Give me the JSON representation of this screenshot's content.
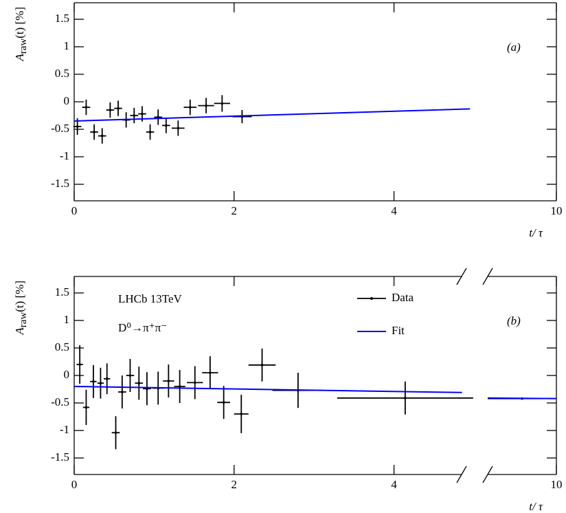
{
  "chart_data": [
    {
      "type": "scatter",
      "panel_label": "(a)",
      "x_label": "t/ τ",
      "y_label": {
        "symbol": "A",
        "subscript": "raw",
        "rest": "(t) [%]"
      },
      "xlim": [
        0,
        10
      ],
      "xticks": [
        0,
        2,
        4,
        10
      ],
      "x_break": [
        5,
        8
      ],
      "break_marks": false,
      "ylim": [
        -1.8,
        1.8
      ],
      "yticks": [
        -1.5,
        -1,
        -0.5,
        0,
        0.5,
        1,
        1.5
      ],
      "series": [
        {
          "type": "errorbar",
          "color": "#000000",
          "x": [
            0.04,
            0.15,
            0.25,
            0.35,
            0.45,
            0.55,
            0.65,
            0.75,
            0.85,
            0.95,
            1.05,
            1.15,
            1.3,
            1.45,
            1.65,
            1.85,
            2.1
          ],
          "xerr": [
            0.05,
            0.05,
            0.05,
            0.05,
            0.05,
            0.05,
            0.05,
            0.05,
            0.05,
            0.05,
            0.05,
            0.05,
            0.08,
            0.08,
            0.1,
            0.1,
            0.12
          ],
          "values": [
            -0.45,
            -0.1,
            -0.55,
            -0.62,
            -0.15,
            -0.12,
            -0.33,
            -0.25,
            -0.22,
            -0.55,
            -0.28,
            -0.43,
            -0.48,
            -0.1,
            -0.07,
            -0.03,
            -0.27
          ],
          "yerr": [
            0.15,
            0.14,
            0.14,
            0.14,
            0.14,
            0.14,
            0.14,
            0.14,
            0.14,
            0.14,
            0.14,
            0.14,
            0.14,
            0.14,
            0.14,
            0.15,
            0.12
          ]
        },
        {
          "type": "line",
          "color": "#0000ff",
          "x": [
            0,
            4.95
          ],
          "values": [
            -0.35,
            -0.13
          ]
        }
      ]
    },
    {
      "type": "scatter",
      "panel_label": "(b)",
      "x_label": "t/ τ",
      "y_label": {
        "symbol": "A",
        "subscript": "raw",
        "rest": "(t) [%]"
      },
      "annotations": [
        "LHCb 13TeV",
        "D⁰→π⁺π⁻"
      ],
      "legend": "top-right",
      "xlim": [
        0,
        10
      ],
      "xticks": [
        0,
        2,
        4,
        10
      ],
      "x_break": [
        5,
        8
      ],
      "break_marks": true,
      "ylim": [
        -1.8,
        1.8
      ],
      "yticks": [
        -1.5,
        -1,
        -0.5,
        0,
        0.5,
        1,
        1.5
      ],
      "series": [
        {
          "name": "Data",
          "type": "errorbar",
          "color": "#000000",
          "x": [
            0.07,
            0.15,
            0.24,
            0.33,
            0.41,
            0.52,
            0.6,
            0.7,
            0.81,
            0.91,
            1.05,
            1.18,
            1.32,
            1.51,
            1.7,
            1.87,
            2.09,
            2.35,
            2.8,
            4.14,
            9
          ],
          "xerr": [
            0.04,
            0.04,
            0.04,
            0.04,
            0.04,
            0.05,
            0.05,
            0.05,
            0.05,
            0.05,
            0.07,
            0.07,
            0.07,
            0.1,
            0.1,
            0.08,
            0.09,
            0.17,
            0.32,
            0.85,
            1
          ],
          "values": [
            0.2,
            -0.58,
            -0.11,
            -0.14,
            -0.06,
            -1.04,
            -0.3,
            0,
            -0.14,
            -0.24,
            -0.23,
            -0.1,
            -0.2,
            -0.13,
            0.05,
            -0.49,
            -0.7,
            0.19,
            -0.27,
            -0.41,
            -0.42
          ],
          "yerr": [
            0.35,
            0.32,
            0.3,
            0.28,
            0.28,
            0.3,
            0.3,
            0.3,
            0.3,
            0.3,
            0.3,
            0.3,
            0.3,
            0.3,
            0.3,
            0.3,
            0.35,
            0.3,
            0.32,
            0.3,
            0.02
          ]
        },
        {
          "name": "Fit",
          "type": "line",
          "color": "#0000ff",
          "x": [
            0,
            4.85,
            6,
            8,
            10
          ],
          "values": [
            -0.2,
            -0.31,
            null,
            -0.41,
            -0.42
          ]
        }
      ]
    }
  ]
}
